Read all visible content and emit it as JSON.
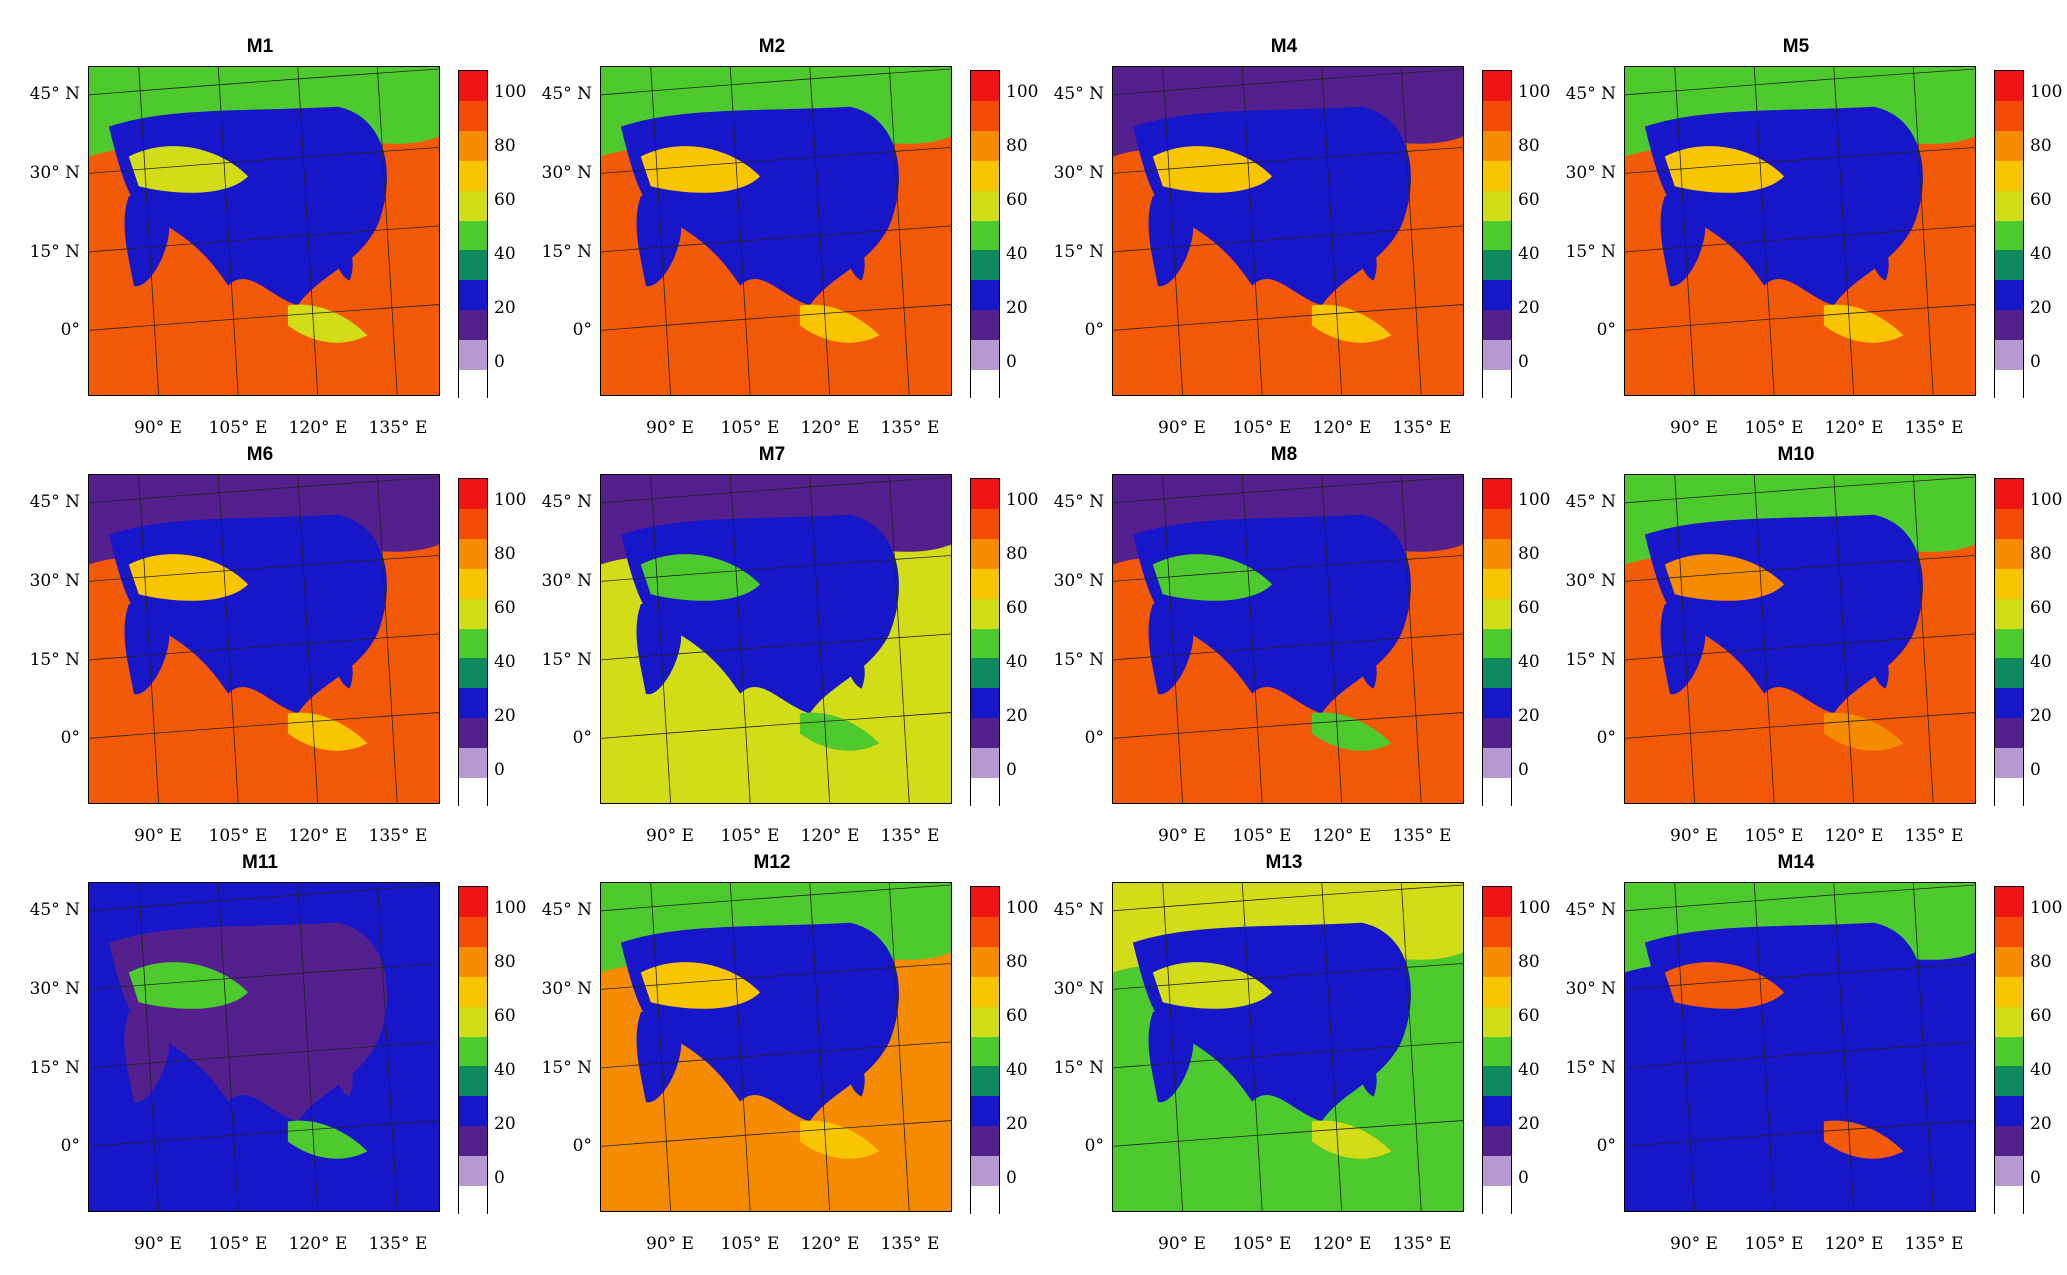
{
  "palette": [
    "#ffffff",
    "#b89ad2",
    "#54208d",
    "#1717c9",
    "#0f8a5e",
    "#4ec92e",
    "#d2dc17",
    "#f7c600",
    "#f58b00",
    "#f34c08",
    "#ef1515"
  ],
  "colorbar_labels": [
    "100",
    "80",
    "60",
    "40",
    "20",
    "0"
  ],
  "lat_labels": [
    "45° N",
    "30° N",
    "15° N",
    "0°"
  ],
  "lon_labels": [
    "90° E",
    "105° E",
    "120° E",
    "135° E"
  ],
  "panels": [
    {
      "title": "M1",
      "ocean": "#f35a08",
      "land": "#1717c9",
      "accent": "#d2dc17",
      "north": "#4ec92e"
    },
    {
      "title": "M2",
      "ocean": "#f35a08",
      "land": "#1717c9",
      "accent": "#f7c600",
      "north": "#4ec92e"
    },
    {
      "title": "M4",
      "ocean": "#f35a08",
      "land": "#1717c9",
      "accent": "#f7c600",
      "north": "#54208d"
    },
    {
      "title": "M5",
      "ocean": "#f35a08",
      "land": "#1717c9",
      "accent": "#f7c600",
      "north": "#4ec92e"
    },
    {
      "title": "M6",
      "ocean": "#f35a08",
      "land": "#1717c9",
      "accent": "#f7c600",
      "north": "#54208d"
    },
    {
      "title": "M7",
      "ocean": "#d2dc17",
      "land": "#1717c9",
      "accent": "#4ec92e",
      "north": "#54208d"
    },
    {
      "title": "M8",
      "ocean": "#f35a08",
      "land": "#1717c9",
      "accent": "#4ec92e",
      "north": "#54208d"
    },
    {
      "title": "M10",
      "ocean": "#f35a08",
      "land": "#1717c9",
      "accent": "#f58b00",
      "north": "#4ec92e"
    },
    {
      "title": "M11",
      "ocean": "#1717c9",
      "land": "#54208d",
      "accent": "#4ec92e",
      "north": "#1717c9"
    },
    {
      "title": "M12",
      "ocean": "#f58b00",
      "land": "#1717c9",
      "accent": "#f7c600",
      "north": "#4ec92e"
    },
    {
      "title": "M13",
      "ocean": "#4ec92e",
      "land": "#1717c9",
      "accent": "#d2dc17",
      "north": "#d2dc17"
    },
    {
      "title": "M14",
      "ocean": "#1717c9",
      "land": "#1717c9",
      "accent": "#f35a08",
      "north": "#4ec92e"
    }
  ]
}
